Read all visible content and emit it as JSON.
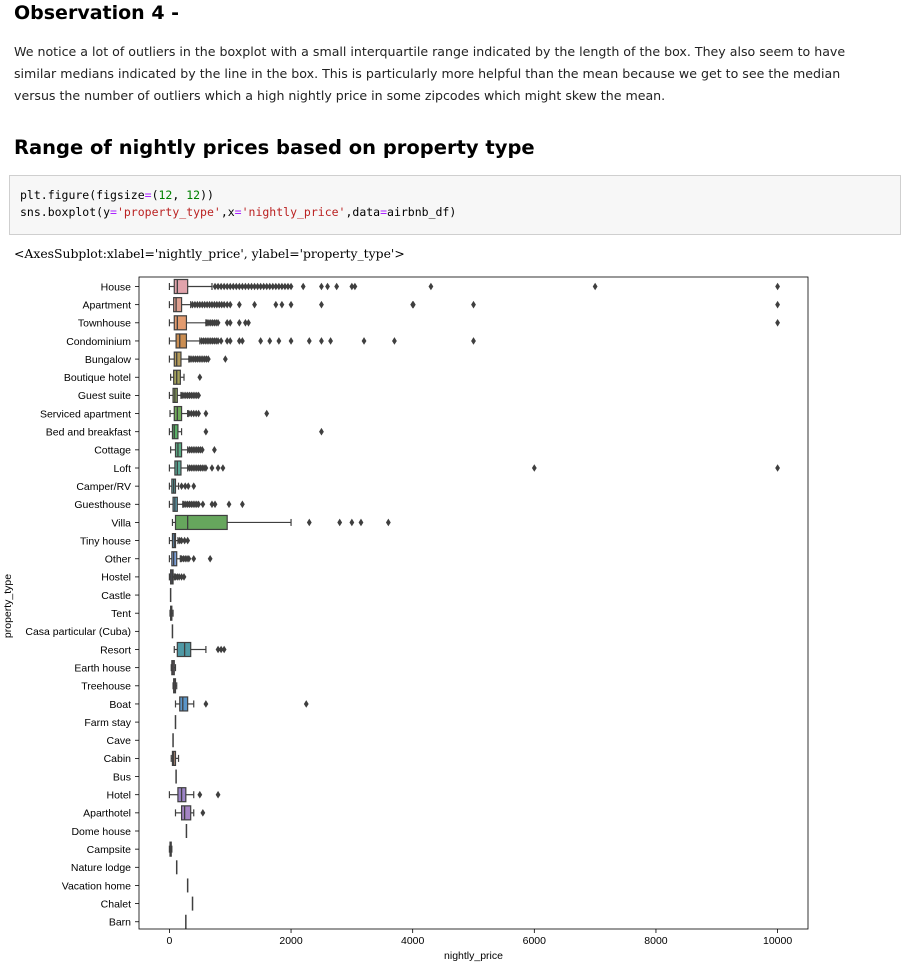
{
  "observation": {
    "heading": "Observation 4 -",
    "text": "We notice a lot of outliers in the boxplot with a small interquartile range indicated by the length of the box. They also seem to have similar medians indicated by the line in the box. This is particularly more helpful than the mean because we get to see the median versus the number of outliers which a high nightly price in some zipcodes which might skew the mean."
  },
  "section": {
    "heading": "Range of nightly prices based on property type"
  },
  "code": {
    "line1": {
      "prefix": "plt.figure(figsize",
      "eq": "=",
      "open": "(",
      "n1": "12",
      "comma": ", ",
      "n2": "12",
      "close": "))"
    },
    "line2": {
      "prefix": "sns.boxplot(y",
      "eq1": "=",
      "s1": "'property_type'",
      "mid1": ",x",
      "eq2": "=",
      "s2": "'nightly_price'",
      "mid2": ",data",
      "eq3": "=",
      "suffix": "airbnb_df)"
    }
  },
  "output": {
    "text": "<AxesSubplot:xlabel='nightly_price', ylabel='property_type'>"
  },
  "chart_data": {
    "type": "boxplot",
    "orientation": "horizontal",
    "xlabel": "nightly_price",
    "ylabel": "property_type",
    "xlim": [
      -500,
      10500
    ],
    "xticks": [
      0,
      2000,
      4000,
      6000,
      8000,
      10000
    ],
    "grid": false,
    "categories": [
      {
        "name": "House",
        "color": "#e1a3ab",
        "stats": [
          0,
          80,
          130,
          300,
          700
        ],
        "outliers": [
          750,
          800,
          850,
          900,
          950,
          1000,
          1050,
          1100,
          1150,
          1200,
          1250,
          1300,
          1350,
          1400,
          1450,
          1500,
          1550,
          1600,
          1650,
          1700,
          1750,
          1800,
          1850,
          1900,
          1950,
          2000,
          2200,
          2500,
          2600,
          2750,
          3000,
          3050,
          4300,
          7000,
          10000
        ]
      },
      {
        "name": "Apartment",
        "color": "#e0a090",
        "stats": [
          0,
          70,
          110,
          200,
          350
        ],
        "outliers": [
          380,
          420,
          460,
          500,
          540,
          580,
          620,
          660,
          700,
          740,
          780,
          820,
          860,
          900,
          950,
          1000,
          1150,
          1400,
          1750,
          1850,
          2000,
          2500,
          4000,
          4010,
          5000,
          10000
        ]
      },
      {
        "name": "Townhouse",
        "color": "#e29b6f",
        "stats": [
          0,
          80,
          130,
          280,
          600
        ],
        "outliers": [
          620,
          650,
          680,
          710,
          740,
          770,
          800,
          950,
          1000,
          1150,
          1250,
          1300,
          10000
        ]
      },
      {
        "name": "Condominium",
        "color": "#cb8e52",
        "stats": [
          0,
          110,
          170,
          280,
          500
        ],
        "outliers": [
          530,
          560,
          590,
          620,
          650,
          680,
          710,
          740,
          770,
          800,
          850,
          950,
          1000,
          1150,
          1200,
          1500,
          1650,
          1800,
          2000,
          2300,
          2500,
          2650,
          3200,
          3700,
          5000
        ]
      },
      {
        "name": "Bungalow",
        "color": "#b49b5b",
        "stats": [
          0,
          80,
          120,
          190,
          320
        ],
        "outliers": [
          340,
          370,
          400,
          430,
          460,
          490,
          520,
          550,
          580,
          610,
          640,
          920
        ]
      },
      {
        "name": "Boutique hotel",
        "color": "#a4a25b",
        "stats": [
          20,
          70,
          120,
          180,
          240
        ],
        "outliers": [
          500
        ]
      },
      {
        "name": "Guest suite",
        "color": "#8ea85c",
        "stats": [
          0,
          60,
          90,
          130,
          190
        ],
        "outliers": [
          210,
          240,
          270,
          300,
          330,
          360,
          390,
          420,
          450,
          480
        ]
      },
      {
        "name": "Serviced apartment",
        "color": "#71ad5b",
        "stats": [
          10,
          80,
          130,
          200,
          300
        ],
        "outliers": [
          320,
          360,
          400,
          440,
          480,
          600,
          1600
        ]
      },
      {
        "name": "Bed and breakfast",
        "color": "#5ab067",
        "stats": [
          0,
          50,
          80,
          140,
          200
        ],
        "outliers": [
          600,
          2500
        ]
      },
      {
        "name": "Cottage",
        "color": "#5bad84",
        "stats": [
          20,
          100,
          140,
          200,
          300
        ],
        "outliers": [
          330,
          360,
          390,
          420,
          450,
          480,
          510,
          540,
          740
        ]
      },
      {
        "name": "Loft",
        "color": "#5cab98",
        "stats": [
          0,
          90,
          130,
          190,
          300
        ],
        "outliers": [
          330,
          360,
          390,
          420,
          450,
          480,
          510,
          540,
          570,
          600,
          700,
          800,
          880,
          6000,
          10000
        ]
      },
      {
        "name": "Camper/RV",
        "color": "#5daaaa",
        "stats": [
          0,
          40,
          70,
          100,
          150
        ],
        "outliers": [
          200,
          260,
          310,
          400
        ]
      },
      {
        "name": "Guesthouse",
        "color": "#5ea8bd",
        "stats": [
          0,
          60,
          90,
          130,
          220
        ],
        "outliers": [
          240,
          270,
          300,
          330,
          360,
          390,
          420,
          450,
          480,
          550,
          700,
          750,
          980,
          1200
        ]
      },
      {
        "name": "Villa",
        "color": "#66a65d",
        "stats": [
          50,
          100,
          300,
          950,
          2000
        ],
        "outliers": [
          2300,
          2800,
          3000,
          3150,
          3600
        ]
      },
      {
        "name": "Tiny house",
        "color": "#6aa3d1",
        "stats": [
          0,
          50,
          80,
          100,
          140
        ],
        "outliers": [
          170,
          200,
          250,
          300
        ]
      },
      {
        "name": "Other",
        "color": "#7ba0d9",
        "stats": [
          0,
          40,
          70,
          120,
          180
        ],
        "outliers": [
          200,
          230,
          260,
          290,
          320,
          400,
          670
        ]
      },
      {
        "name": "Hostel",
        "color": "#9199da",
        "stats": [
          0,
          20,
          40,
          60,
          80
        ],
        "outliers": [
          100,
          130,
          160,
          200,
          240
        ]
      },
      {
        "name": "Castle",
        "color": "#a693d6",
        "stats": [
          20,
          20,
          20,
          20,
          20
        ],
        "outliers": []
      },
      {
        "name": "Tent",
        "color": "#b891d3",
        "stats": [
          10,
          20,
          30,
          40,
          60
        ],
        "outliers": []
      },
      {
        "name": "Casa particular (Cuba)",
        "color": "#c893cf",
        "stats": [
          50,
          50,
          50,
          50,
          50
        ],
        "outliers": []
      },
      {
        "name": "Resort",
        "color": "#4f99a5",
        "stats": [
          80,
          130,
          250,
          350,
          600
        ],
        "outliers": [
          800,
          850,
          900
        ]
      },
      {
        "name": "Earth house",
        "color": "#d496c0",
        "stats": [
          30,
          40,
          60,
          80,
          100
        ],
        "outliers": []
      },
      {
        "name": "Treehouse",
        "color": "#d89ab7",
        "stats": [
          60,
          70,
          80,
          100,
          120
        ],
        "outliers": []
      },
      {
        "name": "Boat",
        "color": "#5a95c9",
        "stats": [
          100,
          170,
          220,
          300,
          400
        ],
        "outliers": [
          600,
          2250
        ]
      },
      {
        "name": "Farm stay",
        "color": "#dba1a5",
        "stats": [
          100,
          100,
          100,
          100,
          100
        ],
        "outliers": []
      },
      {
        "name": "Cave",
        "color": "#dba39b",
        "stats": [
          60,
          60,
          60,
          60,
          60
        ],
        "outliers": []
      },
      {
        "name": "Cabin",
        "color": "#d6a58c",
        "stats": [
          30,
          50,
          70,
          100,
          150
        ],
        "outliers": []
      },
      {
        "name": "Bus",
        "color": "#cba585",
        "stats": [
          110,
          110,
          110,
          110,
          110
        ],
        "outliers": []
      },
      {
        "name": "Hotel",
        "color": "#9c84c7",
        "stats": [
          0,
          140,
          200,
          270,
          400
        ],
        "outliers": [
          500,
          800
        ]
      },
      {
        "name": "Aparthotel",
        "color": "#a584c4",
        "stats": [
          100,
          200,
          250,
          350,
          400
        ],
        "outliers": [
          550
        ]
      },
      {
        "name": "Dome house",
        "color": "#b88fc4",
        "stats": [
          280,
          280,
          280,
          280,
          280
        ],
        "outliers": []
      },
      {
        "name": "Campsite",
        "color": "#c194c0",
        "stats": [
          0,
          10,
          20,
          30,
          40
        ],
        "outliers": []
      },
      {
        "name": "Nature lodge",
        "color": "#cb98b9",
        "stats": [
          120,
          120,
          120,
          120,
          120
        ],
        "outliers": []
      },
      {
        "name": "Vacation home",
        "color": "#d49cb1",
        "stats": [
          300,
          300,
          300,
          300,
          300
        ],
        "outliers": []
      },
      {
        "name": "Chalet",
        "color": "#d8a0a8",
        "stats": [
          380,
          380,
          380,
          380,
          380
        ],
        "outliers": []
      },
      {
        "name": "Barn",
        "color": "#daa49e",
        "stats": [
          270,
          270,
          270,
          270,
          270
        ],
        "outliers": []
      }
    ]
  }
}
